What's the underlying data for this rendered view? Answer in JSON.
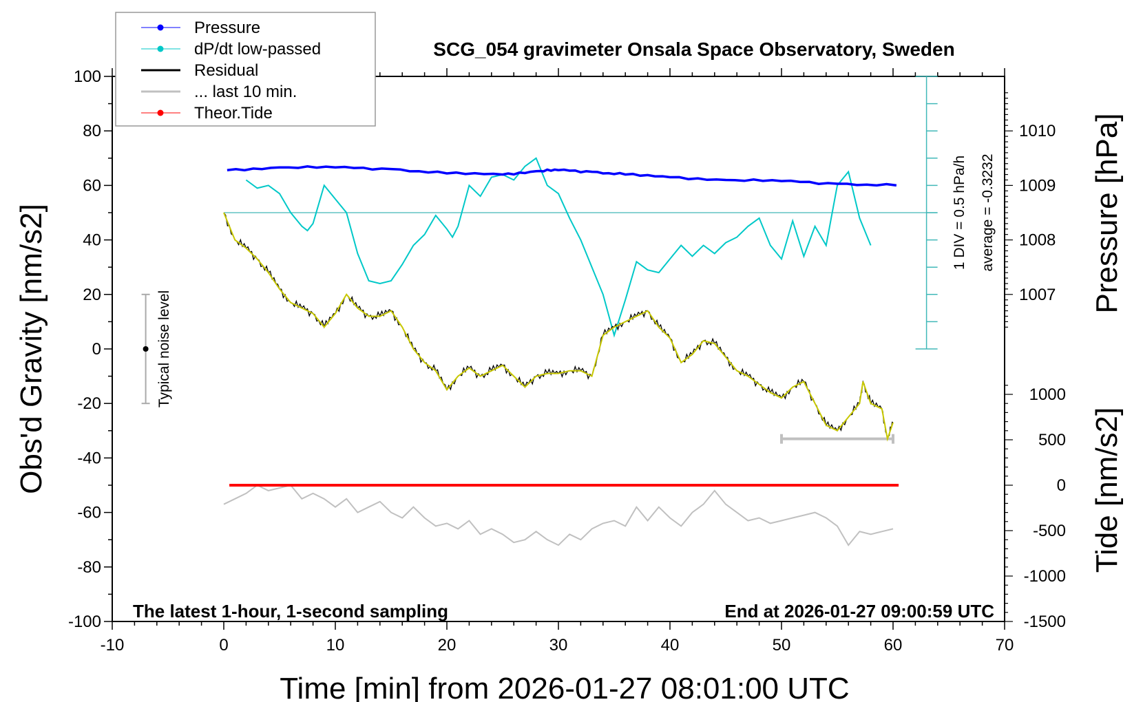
{
  "chart_data": {
    "type": "line",
    "title": "SCG_054 gravimeter Onsala Space Observatory, Sweden",
    "xlabel": "Time [min] from 2026-01-27 08:01:00 UTC",
    "ylabel": "Obs'd Gravity [nm/s2]",
    "ylabel_right_top": "Pressure [hPa]",
    "ylabel_right_bottom": "Tide [nm/s2]",
    "xlim": [
      -10,
      70
    ],
    "ylim": [
      -100,
      100
    ],
    "xticks": [
      "-10",
      "0",
      "10",
      "20",
      "30",
      "40",
      "50",
      "60",
      "70"
    ],
    "yticks": [
      "-100",
      "-80",
      "-60",
      "-40",
      "-20",
      "0",
      "20",
      "40",
      "60",
      "80",
      "100"
    ],
    "pressure_ticks": [
      "1007",
      "1008",
      "1009",
      "1010"
    ],
    "tide_ticks": [
      "-1500",
      "-1000",
      "-500",
      "0",
      "500",
      "1000"
    ],
    "grid": false,
    "legend_position": "top-left",
    "annotations": {
      "bottom_left": "The latest 1-hour, 1-second sampling",
      "bottom_right": "End at 2026-01-27 09:00:59 UTC",
      "dpdt_scale": "1 DIV = 0.5 hPa/h",
      "dpdt_average": "average = -0.3232",
      "noise_label": "Typical noise level"
    },
    "noise_bar": {
      "x": -7,
      "center": 0,
      "halfwidth": 20
    },
    "last10_bar": {
      "x_start": 50,
      "x_end": 60,
      "y": -33
    },
    "legend": [
      {
        "label": "Pressure",
        "color": "#0000ff",
        "marker": true
      },
      {
        "label": "dP/dt low-passed",
        "color": "#00c8c8",
        "marker": true
      },
      {
        "label": "Residual",
        "color": "#000000",
        "marker": false
      },
      {
        "label": "... last 10 min.",
        "color": "#c0c0c0",
        "marker": false
      },
      {
        "label": "Theor.Tide",
        "color": "#ff0000",
        "marker": true
      }
    ],
    "series": [
      {
        "name": "Pressure",
        "axis": "pressure_hPa",
        "color": "#0000ff",
        "x": [
          0.3,
          5,
          10,
          15,
          20,
          25,
          28,
          30,
          33,
          36,
          40,
          45,
          50,
          55,
          60.3
        ],
        "y": [
          1009.28,
          1009.33,
          1009.33,
          1009.3,
          1009.22,
          1009.2,
          1009.26,
          1009.28,
          1009.25,
          1009.2,
          1009.15,
          1009.1,
          1009.08,
          1009.03,
          1009.0
        ]
      },
      {
        "name": "dP/dt low-passed",
        "axis": "dpdt_hPa_per_h",
        "color": "#00c8c8",
        "x": [
          2,
          3,
          4,
          5,
          6,
          7,
          7.5,
          8,
          9,
          10,
          11,
          12,
          13,
          14,
          15,
          16,
          17,
          18,
          19,
          20,
          20.5,
          21,
          22,
          23,
          24,
          25,
          26,
          27,
          28,
          29,
          30,
          31,
          32,
          33,
          34,
          35,
          36,
          37,
          38,
          39,
          40,
          41,
          42,
          43,
          44,
          45,
          46,
          47,
          48,
          49,
          50,
          51,
          52,
          53,
          54,
          55,
          56,
          57,
          58
        ],
        "y": [
          0.6,
          0.45,
          0.5,
          0.35,
          0.0,
          -0.25,
          -0.33,
          -0.2,
          0.5,
          0.25,
          0.0,
          -0.75,
          -1.25,
          -1.3,
          -1.25,
          -0.95,
          -0.6,
          -0.4,
          -0.05,
          -0.3,
          -0.45,
          -0.25,
          0.5,
          0.3,
          0.65,
          0.7,
          0.6,
          0.85,
          1.0,
          0.5,
          0.35,
          -0.1,
          -0.5,
          -1.0,
          -1.5,
          -2.25,
          -1.6,
          -0.9,
          -1.05,
          -1.1,
          -0.85,
          -0.6,
          -0.8,
          -0.6,
          -0.75,
          -0.55,
          -0.45,
          -0.25,
          -0.1,
          -0.6,
          -0.85,
          -0.15,
          -0.8,
          -0.25,
          -0.6,
          0.5,
          0.75,
          -0.1,
          -0.6
        ]
      },
      {
        "name": "Residual",
        "axis": "gravity",
        "color": "#000000",
        "smooth_color": "#c8c800",
        "x": [
          0,
          1,
          2,
          3,
          4,
          5,
          6,
          7,
          8,
          9,
          10,
          11,
          12,
          13,
          14,
          15,
          16,
          17,
          18,
          19,
          20,
          21,
          22,
          23,
          24,
          25,
          26,
          27,
          28,
          29,
          30,
          31,
          32,
          33,
          34,
          35,
          36,
          37,
          38,
          39,
          40,
          41,
          42,
          43,
          44,
          45,
          46,
          47,
          48,
          49,
          50,
          51,
          52,
          53,
          54,
          55,
          56,
          57,
          57.3,
          58,
          59,
          59.5,
          60
        ],
        "y": [
          50,
          40,
          37,
          33,
          28,
          22,
          17,
          15,
          13,
          8,
          13,
          20,
          15,
          12,
          12,
          14,
          8,
          0,
          -5,
          -8,
          -15,
          -10,
          -7,
          -10,
          -8,
          -6,
          -10,
          -14,
          -10,
          -9,
          -9,
          -8,
          -8,
          -10,
          5,
          8,
          10,
          12,
          14,
          8,
          4,
          -5,
          -2,
          3,
          2,
          -3,
          -8,
          -10,
          -13,
          -16,
          -18,
          -14,
          -12,
          -20,
          -28,
          -30,
          -25,
          -20,
          -12,
          -20,
          -22,
          -33,
          -27
        ]
      },
      {
        "axis": "gravity",
        "color": "#c0c0c0",
        "x": [
          0,
          1,
          2,
          3,
          4,
          5,
          6,
          7,
          8,
          9,
          10,
          11,
          12,
          13,
          14,
          15,
          16,
          17,
          18,
          19,
          20,
          21,
          22,
          23,
          24,
          25,
          26,
          27,
          28,
          29,
          30,
          31,
          32,
          33,
          34,
          35,
          36,
          37,
          38,
          39,
          40,
          41,
          42,
          43,
          44,
          45,
          46,
          47,
          48,
          49,
          50,
          51,
          52,
          53,
          54,
          55,
          56,
          57,
          58,
          59,
          60
        ],
        "y": [
          -57,
          -55,
          -53,
          -50,
          -52,
          -51,
          -50,
          -55,
          -53,
          -55,
          -58,
          -55,
          -60,
          -58,
          -56,
          -60,
          -62,
          -58,
          -62,
          -65,
          -64,
          -66,
          -63,
          -68,
          -66,
          -68,
          -71,
          -70,
          -67,
          -70,
          -72,
          -68,
          -70,
          -66,
          -64,
          -63,
          -65,
          -58,
          -63,
          -58,
          -62,
          -65,
          -60,
          -57,
          -52,
          -57,
          -60,
          -63,
          -62,
          -64,
          -63,
          -62,
          -61,
          -60,
          -62,
          -65,
          -72,
          -67,
          -68,
          -67,
          -66
        ]
      },
      {
        "name": "Theor.Tide",
        "axis": "tide_nm_s2",
        "color": "#ff0000",
        "x": [
          0.5,
          60.5
        ],
        "y": [
          0,
          0
        ]
      }
    ]
  }
}
